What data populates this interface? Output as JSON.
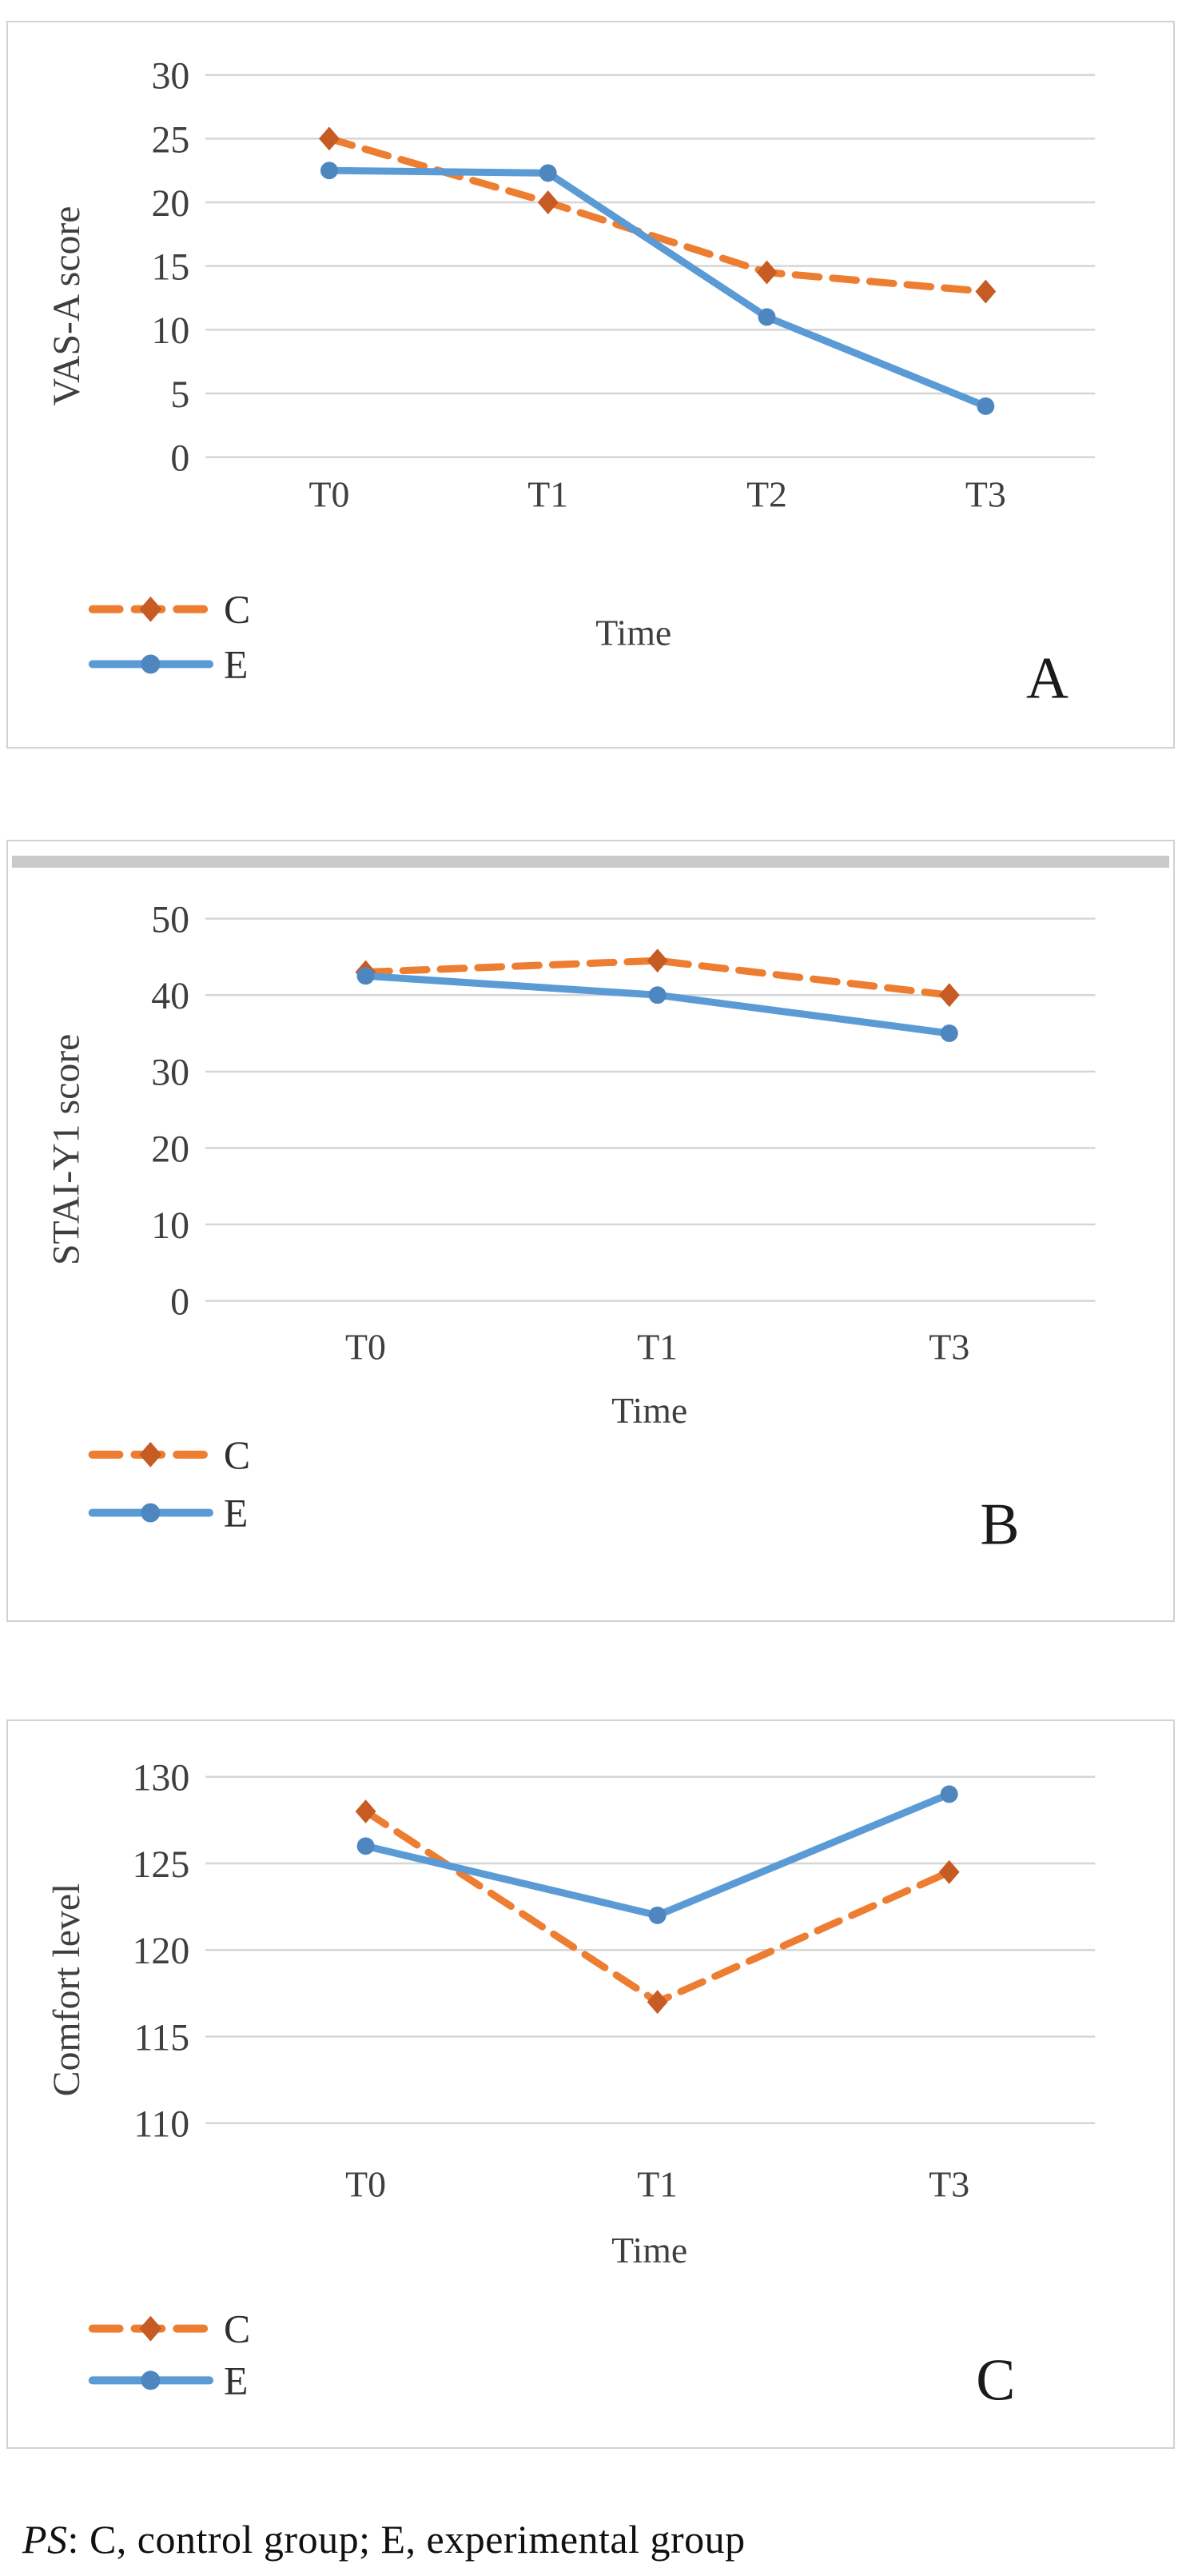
{
  "page": {
    "footer_prefix": "PS",
    "footer_rest": ": C, control group; E, experimental group"
  },
  "colors": {
    "control_line": "#ED7D31",
    "control_marker": "#C75B24",
    "experimental_line": "#5B9BD5",
    "experimental_marker": "#4E86BF",
    "grid": "#D6D6D6",
    "text": "#3F3F3F",
    "legend_text": "#2F2F2F",
    "panel_letter": "#1A1A1A",
    "panel_border": "#D2D2D2",
    "top_bar": "#C9C9C9"
  },
  "chart_data": [
    {
      "type": "line",
      "panel_letter": "A",
      "ylabel": "VAS-A score",
      "xlabel": "Time",
      "categories": [
        "T0",
        "T1",
        "T2",
        "T3"
      ],
      "ylim": [
        0,
        30
      ],
      "ytick_step": 5,
      "grid": true,
      "legend_position": "bottom-left",
      "top_bar": false,
      "series": [
        {
          "name": "C",
          "style": "dashed",
          "marker": "diamond",
          "values": [
            25,
            20,
            14.5,
            13
          ]
        },
        {
          "name": "E",
          "style": "solid",
          "marker": "circle",
          "values": [
            22.5,
            22.3,
            11,
            4
          ]
        }
      ]
    },
    {
      "type": "line",
      "panel_letter": "B",
      "ylabel": "STAI-Y1 score",
      "xlabel": "Time",
      "categories": [
        "T0",
        "T1",
        "T3"
      ],
      "ylim": [
        0,
        50
      ],
      "ytick_step": 10,
      "grid": true,
      "legend_position": "bottom-left",
      "top_bar": true,
      "series": [
        {
          "name": "C",
          "style": "dashed",
          "marker": "diamond",
          "values": [
            43,
            44.5,
            40
          ]
        },
        {
          "name": "E",
          "style": "solid",
          "marker": "circle",
          "values": [
            42.5,
            40,
            35
          ]
        }
      ]
    },
    {
      "type": "line",
      "panel_letter": "C",
      "ylabel": "Comfort level",
      "xlabel": "Time",
      "categories": [
        "T0",
        "T1",
        "T3"
      ],
      "ylim": [
        110,
        130
      ],
      "ytick_step": 5,
      "grid": true,
      "legend_position": "bottom-left",
      "top_bar": false,
      "series": [
        {
          "name": "C",
          "style": "dashed",
          "marker": "diamond",
          "values": [
            128,
            117,
            124.5
          ]
        },
        {
          "name": "E",
          "style": "solid",
          "marker": "circle",
          "values": [
            126,
            122,
            129
          ]
        }
      ]
    }
  ]
}
